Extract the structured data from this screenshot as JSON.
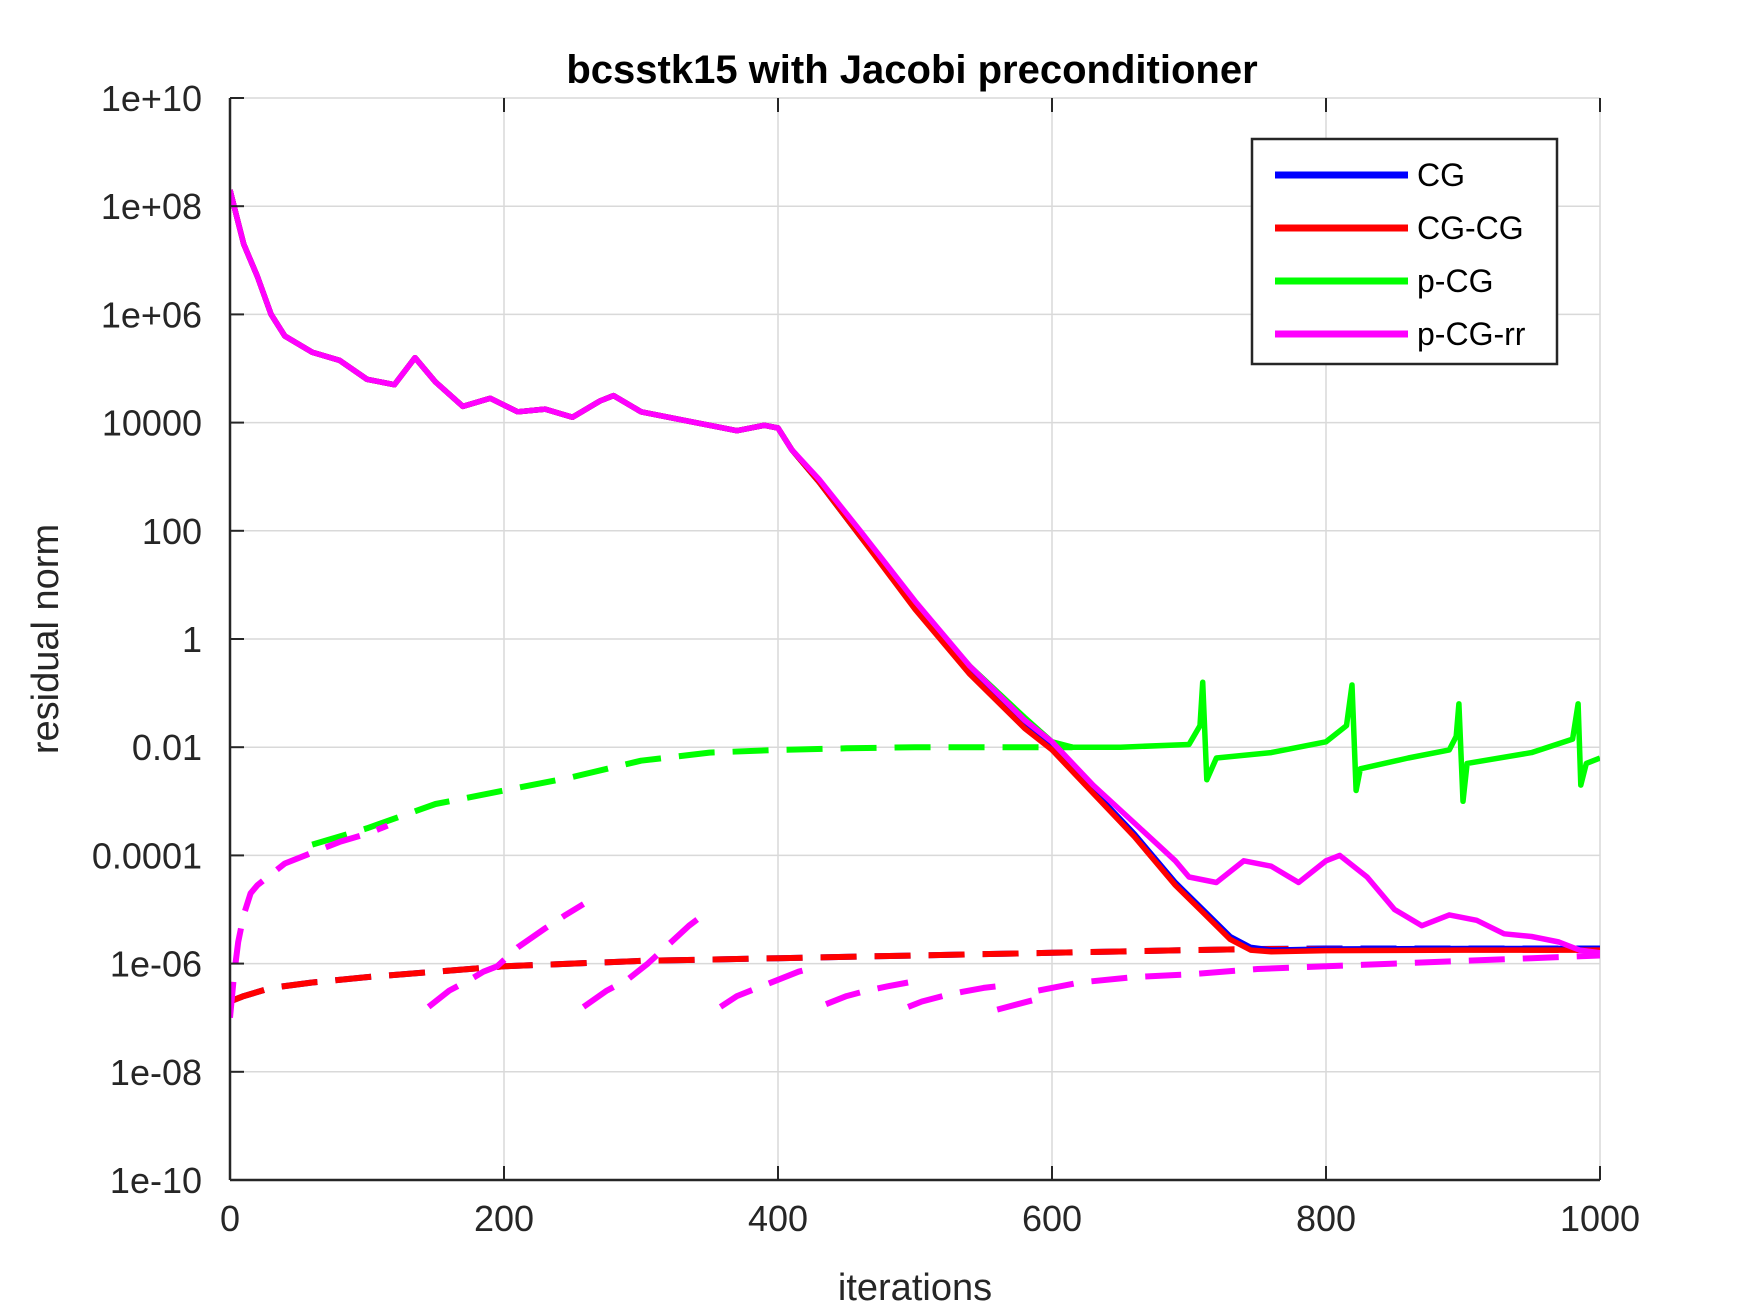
{
  "chart_data": {
    "type": "line",
    "title": "bcsstk15 with Jacobi preconditioner",
    "xlabel": "iterations",
    "ylabel": "residual norm",
    "xlim": [
      0,
      1000
    ],
    "ylim_log10": [
      -10,
      10
    ],
    "y_scale": "log",
    "grid": true,
    "legend_position": "top-right",
    "x_ticks": [
      0,
      200,
      400,
      600,
      800,
      1000
    ],
    "x_tick_labels": [
      "0",
      "200",
      "400",
      "600",
      "800",
      "1000"
    ],
    "y_ticks_log10": [
      10,
      8,
      6,
      4,
      2,
      0,
      -2,
      -4,
      -6,
      -8,
      -10
    ],
    "y_tick_labels": [
      "1e+10",
      "1e+08",
      "1e+06",
      "10000",
      "100",
      "1",
      "0.01",
      "0.0001",
      "1e-06",
      "1e-08",
      "1e-10"
    ],
    "legend": [
      "CG",
      "CG-CG",
      "p-CG",
      "p-CG-rr"
    ],
    "colors": {
      "CG": "#0000ff",
      "CG-CG": "#ff0000",
      "p-CG": "#00ff00",
      "p-CG-rr": "#ff00ff"
    },
    "series": [
      {
        "name": "CG",
        "style": "solid",
        "x": [
          0,
          5,
          10,
          20,
          30,
          40,
          60,
          80,
          100,
          120,
          135,
          150,
          170,
          190,
          210,
          230,
          250,
          270,
          280,
          300,
          330,
          370,
          390,
          400,
          410,
          430,
          460,
          500,
          540,
          580,
          600,
          630,
          660,
          690,
          710,
          730,
          745,
          760,
          800,
          900,
          1000
        ],
        "log10_y": [
          8.3,
          7.8,
          7.3,
          6.7,
          6.0,
          5.6,
          5.3,
          5.15,
          4.8,
          4.7,
          5.2,
          4.75,
          4.3,
          4.45,
          4.2,
          4.25,
          4.1,
          4.4,
          4.5,
          4.2,
          4.05,
          3.85,
          3.95,
          3.9,
          3.5,
          2.9,
          1.9,
          0.6,
          -0.6,
          -1.6,
          -2.0,
          -2.8,
          -3.6,
          -4.5,
          -5.0,
          -5.5,
          -5.7,
          -5.75,
          -5.73,
          -5.72,
          -5.72
        ]
      },
      {
        "name": "CG-CG",
        "style": "solid",
        "x": [
          0,
          5,
          10,
          20,
          30,
          40,
          60,
          80,
          100,
          120,
          135,
          150,
          170,
          190,
          210,
          230,
          250,
          270,
          280,
          300,
          330,
          370,
          390,
          400,
          410,
          430,
          460,
          500,
          540,
          580,
          600,
          630,
          660,
          690,
          710,
          730,
          745,
          760,
          800,
          900,
          1000
        ],
        "log10_y": [
          8.3,
          7.8,
          7.3,
          6.7,
          6.0,
          5.6,
          5.3,
          5.15,
          4.8,
          4.7,
          5.2,
          4.75,
          4.3,
          4.45,
          4.2,
          4.25,
          4.1,
          4.4,
          4.5,
          4.2,
          4.05,
          3.85,
          3.95,
          3.9,
          3.5,
          2.9,
          1.9,
          0.55,
          -0.65,
          -1.65,
          -2.05,
          -2.85,
          -3.65,
          -4.55,
          -5.05,
          -5.55,
          -5.75,
          -5.78,
          -5.76,
          -5.75,
          -5.75
        ]
      },
      {
        "name": "p-CG",
        "style": "solid",
        "x": [
          0,
          5,
          10,
          20,
          30,
          40,
          60,
          80,
          100,
          120,
          135,
          150,
          170,
          190,
          210,
          230,
          250,
          270,
          280,
          300,
          330,
          370,
          390,
          400,
          410,
          430,
          460,
          500,
          540,
          580,
          600,
          615,
          650,
          700,
          708,
          710,
          713,
          720,
          760,
          800,
          815,
          819,
          822,
          825,
          860,
          890,
          895,
          897,
          900,
          903,
          950,
          980,
          984,
          986,
          990,
          1000
        ],
        "log10_y": [
          8.3,
          7.8,
          7.3,
          6.7,
          6.0,
          5.6,
          5.3,
          5.15,
          4.8,
          4.7,
          5.2,
          4.75,
          4.3,
          4.45,
          4.2,
          4.25,
          4.1,
          4.4,
          4.5,
          4.2,
          4.05,
          3.85,
          3.95,
          3.9,
          3.5,
          2.9,
          1.9,
          0.65,
          -0.5,
          -1.45,
          -1.9,
          -2.0,
          -2.0,
          -1.95,
          -1.6,
          -0.8,
          -2.6,
          -2.2,
          -2.1,
          -1.9,
          -1.6,
          -0.85,
          -2.8,
          -2.4,
          -2.2,
          -2.05,
          -1.8,
          -1.2,
          -3.0,
          -2.3,
          -2.1,
          -1.85,
          -1.2,
          -2.7,
          -2.3,
          -2.2
        ]
      },
      {
        "name": "p-CG-rr",
        "style": "solid",
        "x": [
          0,
          5,
          10,
          20,
          30,
          40,
          60,
          80,
          100,
          120,
          135,
          150,
          170,
          190,
          210,
          230,
          250,
          270,
          280,
          300,
          330,
          370,
          390,
          400,
          410,
          430,
          460,
          500,
          540,
          580,
          600,
          630,
          660,
          690,
          700,
          720,
          740,
          760,
          780,
          800,
          810,
          830,
          850,
          870,
          890,
          910,
          930,
          950,
          970,
          985,
          1000
        ],
        "log10_y": [
          8.3,
          7.8,
          7.3,
          6.7,
          6.0,
          5.6,
          5.3,
          5.15,
          4.8,
          4.7,
          5.2,
          4.75,
          4.3,
          4.45,
          4.2,
          4.25,
          4.1,
          4.4,
          4.5,
          4.2,
          4.05,
          3.85,
          3.95,
          3.9,
          3.5,
          2.95,
          2.0,
          0.7,
          -0.5,
          -1.5,
          -1.9,
          -2.7,
          -3.4,
          -4.1,
          -4.4,
          -4.5,
          -4.1,
          -4.2,
          -4.5,
          -4.1,
          -4.0,
          -4.4,
          -5.0,
          -5.3,
          -5.1,
          -5.2,
          -5.45,
          -5.5,
          -5.6,
          -5.75,
          -5.8
        ]
      },
      {
        "name": "CG (dashed)",
        "style": "dashed",
        "legend_ref": "CG",
        "x": [
          0,
          10,
          30,
          60,
          100,
          150,
          200,
          300,
          400,
          500,
          600,
          700,
          750,
          800,
          900,
          1000
        ],
        "log10_y": [
          -6.7,
          -6.6,
          -6.45,
          -6.35,
          -6.25,
          -6.15,
          -6.05,
          -5.95,
          -5.9,
          -5.85,
          -5.8,
          -5.75,
          -5.73,
          -5.72,
          -5.72,
          -5.72
        ]
      },
      {
        "name": "CG-CG (dashed)",
        "style": "dashed",
        "legend_ref": "CG-CG",
        "x": [
          0,
          10,
          30,
          60,
          100,
          150,
          200,
          300,
          400,
          500,
          600,
          700,
          750,
          800,
          900,
          1000
        ],
        "log10_y": [
          -6.7,
          -6.6,
          -6.45,
          -6.35,
          -6.25,
          -6.15,
          -6.05,
          -5.95,
          -5.9,
          -5.85,
          -5.8,
          -5.75,
          -5.73,
          -5.73,
          -5.74,
          -5.75
        ]
      },
      {
        "name": "p-CG (dashed)",
        "style": "dashed",
        "legend_ref": "p-CG",
        "x": [
          60,
          100,
          150,
          200,
          250,
          300,
          350,
          400,
          450,
          500,
          550,
          600,
          615
        ],
        "log10_y": [
          -3.8,
          -3.5,
          -3.05,
          -2.8,
          -2.55,
          -2.25,
          -2.1,
          -2.05,
          -2.02,
          -2.0,
          -2.0,
          -2.0,
          -2.0
        ]
      },
      {
        "name": "p-CG-rr (dashed)",
        "style": "dashed",
        "legend_ref": "p-CG-rr",
        "segments": [
          {
            "x": [
              0,
              3,
              6,
              10,
              15,
              20,
              30,
              40,
              60,
              80,
              100,
              115
            ],
            "log10_y": [
              -7.0,
              -6.2,
              -5.6,
              -5.1,
              -4.7,
              -4.55,
              -4.35,
              -4.15,
              -3.95,
              -3.75,
              -3.6,
              -3.45
            ]
          },
          {
            "x": [
              145,
              160,
              175,
              185,
              195,
              210,
              230,
              245,
              258
            ],
            "log10_y": [
              -6.8,
              -6.5,
              -6.3,
              -6.15,
              -6.05,
              -5.7,
              -5.35,
              -5.1,
              -4.9
            ]
          },
          {
            "x": [
              258,
              275,
              290,
              305,
              320,
              335,
              348
            ],
            "log10_y": [
              -6.8,
              -6.5,
              -6.3,
              -6.0,
              -5.65,
              -5.3,
              -5.05
            ]
          },
          {
            "x": [
              358,
              370,
              385,
              400,
              415,
              430
            ],
            "log10_y": [
              -6.8,
              -6.6,
              -6.45,
              -6.3,
              -6.15,
              -6.05
            ]
          },
          {
            "x": [
              435,
              450,
              465,
              480,
              495
            ],
            "log10_y": [
              -6.75,
              -6.6,
              -6.5,
              -6.42,
              -6.35
            ]
          },
          {
            "x": [
              495,
              505,
              520,
              535,
              550,
              560
            ],
            "log10_y": [
              -6.8,
              -6.7,
              -6.6,
              -6.52,
              -6.45,
              -6.42
            ]
          },
          {
            "x": [
              560,
              575,
              590
            ],
            "log10_y": [
              -6.85,
              -6.75,
              -6.65
            ]
          },
          {
            "x": [
              590,
              620,
              660,
              700,
              750,
              800,
              850,
              900,
              950,
              1000
            ],
            "log10_y": [
              -6.5,
              -6.35,
              -6.25,
              -6.2,
              -6.1,
              -6.05,
              -6.0,
              -5.95,
              -5.9,
              -5.85
            ]
          }
        ]
      }
    ]
  }
}
